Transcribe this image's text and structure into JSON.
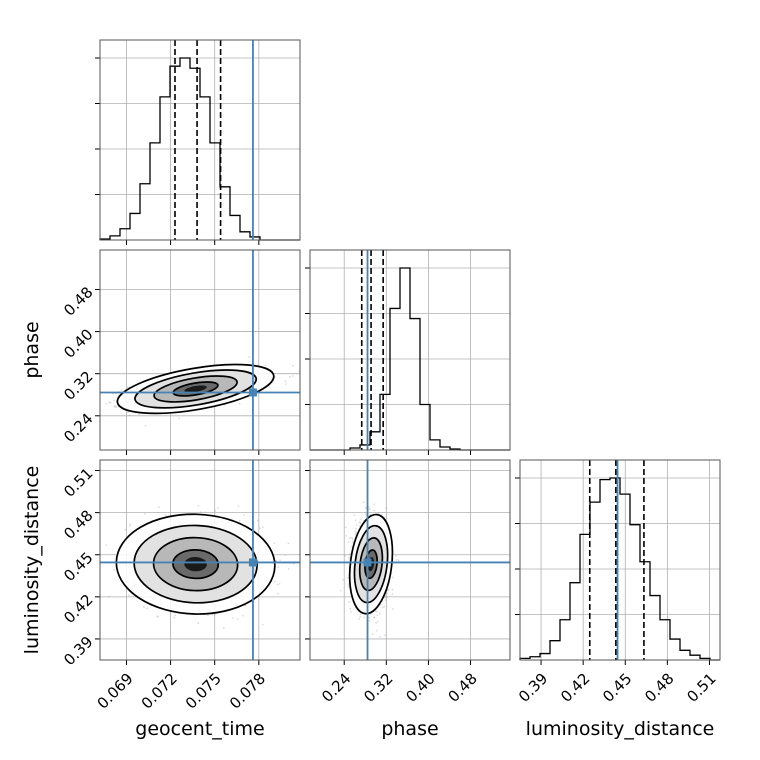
{
  "chart_data": {
    "type": "corner",
    "parameters": [
      "geocent_time",
      "phase",
      "luminosity_distance"
    ],
    "axis_labels": {
      "geocent_time": "geocent_time",
      "phase": "phase",
      "luminosity_distance": "luminosity_distance"
    },
    "ticks": {
      "geocent_time": {
        "values": [
          0.069,
          0.072,
          0.075,
          0.078
        ],
        "labels": [
          "0.069",
          "0.072",
          "0.075",
          "0.078"
        ]
      },
      "phase": {
        "values": [
          0.24,
          0.32,
          0.4,
          0.48
        ],
        "labels": [
          "0.24",
          "0.32",
          "0.40",
          "0.48"
        ]
      },
      "luminosity_distance": {
        "values": [
          0.39,
          0.42,
          0.45,
          0.48,
          0.51
        ],
        "labels": [
          "0.39",
          "0.42",
          "0.45",
          "0.48",
          "0.51"
        ]
      }
    },
    "ranges": {
      "geocent_time": [
        0.0672,
        0.0808
      ],
      "phase": [
        0.175,
        0.555
      ],
      "luminosity_distance": [
        0.375,
        0.5175
      ]
    },
    "truths": {
      "geocent_time": 0.0776,
      "phase": 0.2843,
      "luminosity_distance": 0.4445
    },
    "quantiles": {
      "geocent_time": [
        0.0723,
        0.0738,
        0.0754
      ],
      "phase": [
        0.2733,
        0.291,
        0.314
      ],
      "luminosity_distance": [
        0.4247,
        0.4433,
        0.4633
      ]
    },
    "histograms": {
      "geocent_time": {
        "bins": [
          0.0672,
          0.0808
        ],
        "counts": [
          1,
          4,
          11,
          26,
          55,
          95,
          140,
          170,
          178,
          168,
          140,
          95,
          52,
          24,
          8,
          3,
          0,
          0,
          0,
          0
        ]
      },
      "phase": {
        "bins": [
          0.175,
          0.555
        ],
        "counts": [
          0,
          0,
          0,
          0,
          2,
          5,
          18,
          55,
          140,
          180,
          130,
          45,
          10,
          3,
          1,
          0,
          0,
          0,
          0,
          0
        ]
      },
      "luminosity_distance": {
        "bins": [
          0.375,
          0.5175
        ],
        "counts": [
          1,
          2,
          4,
          12,
          25,
          48,
          78,
          98,
          112,
          113,
          103,
          84,
          61,
          40,
          25,
          13,
          6,
          3,
          1,
          0
        ]
      }
    },
    "posterior_2d": {
      "phase_vs_geocent_time": {
        "mean": [
          0.0737,
          0.291
        ],
        "sd": [
          0.0022,
          0.016
        ],
        "corr": 0.55
      },
      "luminosity_distance_vs_geocent_time": {
        "mean": [
          0.0737,
          0.4433
        ],
        "sd": [
          0.0022,
          0.0145
        ],
        "corr": -0.05
      },
      "luminosity_distance_vs_phase": {
        "mean": [
          0.291,
          0.4433
        ],
        "sd": [
          0.016,
          0.0145
        ],
        "corr": -0.05
      }
    },
    "grid": true,
    "colors": {
      "truth": "#4682b4",
      "hist": "#000000",
      "points": "#9a9a9a",
      "grid": "#b0b0b0"
    }
  }
}
